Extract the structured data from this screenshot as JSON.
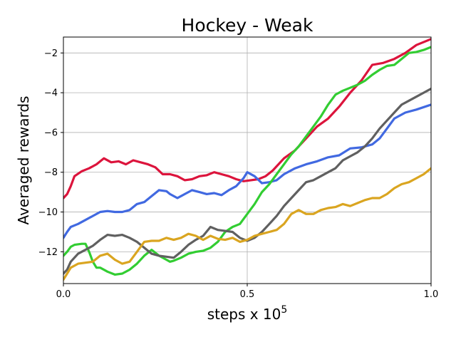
{
  "chart_data": {
    "type": "line",
    "title": "Hockey - Weak",
    "xlabel": "steps x 10",
    "xlabel_superscript": "5",
    "ylabel": "Averaged rewards",
    "xlim": [
      0.0,
      1.0
    ],
    "ylim": [
      -13.6,
      -1.2
    ],
    "x_ticks": [
      0.0,
      0.5,
      1.0
    ],
    "x_tick_labels": [
      "0.0",
      "0.5",
      "1.0"
    ],
    "y_ticks": [
      -12,
      -10,
      -8,
      -6,
      -4,
      -2
    ],
    "y_tick_labels": [
      "−12",
      "−10",
      "−8",
      "−6",
      "−4",
      "−2"
    ],
    "grid": true,
    "legend": "none",
    "series": [
      {
        "color": "#dc143c",
        "x": [
          0.0,
          0.01,
          0.02,
          0.03,
          0.05,
          0.07,
          0.09,
          0.11,
          0.13,
          0.15,
          0.17,
          0.19,
          0.21,
          0.23,
          0.25,
          0.27,
          0.29,
          0.31,
          0.33,
          0.35,
          0.37,
          0.39,
          0.41,
          0.43,
          0.45,
          0.47,
          0.49,
          0.51,
          0.53,
          0.55,
          0.57,
          0.6,
          0.63,
          0.66,
          0.69,
          0.72,
          0.75,
          0.78,
          0.81,
          0.84,
          0.87,
          0.9,
          0.93,
          0.96,
          1.0
        ],
        "y": [
          -9.3,
          -9.1,
          -8.7,
          -8.2,
          -7.95,
          -7.8,
          -7.6,
          -7.3,
          -7.5,
          -7.45,
          -7.6,
          -7.4,
          -7.5,
          -7.6,
          -7.75,
          -8.1,
          -8.1,
          -8.2,
          -8.4,
          -8.35,
          -8.2,
          -8.15,
          -8.0,
          -8.1,
          -8.2,
          -8.35,
          -8.45,
          -8.4,
          -8.35,
          -8.2,
          -7.9,
          -7.3,
          -6.9,
          -6.3,
          -5.7,
          -5.3,
          -4.7,
          -4.0,
          -3.4,
          -2.6,
          -2.5,
          -2.3,
          -2.0,
          -1.6,
          -1.3
        ]
      },
      {
        "color": "#4169e1",
        "x": [
          0.0,
          0.01,
          0.02,
          0.04,
          0.06,
          0.08,
          0.1,
          0.12,
          0.14,
          0.16,
          0.18,
          0.2,
          0.22,
          0.24,
          0.26,
          0.28,
          0.29,
          0.31,
          0.33,
          0.35,
          0.37,
          0.39,
          0.41,
          0.43,
          0.45,
          0.47,
          0.49,
          0.5,
          0.52,
          0.54,
          0.56,
          0.58,
          0.6,
          0.63,
          0.66,
          0.69,
          0.72,
          0.75,
          0.78,
          0.81,
          0.84,
          0.86,
          0.88,
          0.9,
          0.93,
          0.96,
          1.0
        ],
        "y": [
          -11.3,
          -11.0,
          -10.75,
          -10.6,
          -10.4,
          -10.2,
          -10.0,
          -9.95,
          -10.0,
          -10.0,
          -9.9,
          -9.6,
          -9.5,
          -9.2,
          -8.9,
          -8.95,
          -9.1,
          -9.3,
          -9.1,
          -8.9,
          -9.0,
          -9.1,
          -9.05,
          -9.15,
          -8.9,
          -8.7,
          -8.3,
          -8.0,
          -8.2,
          -8.55,
          -8.5,
          -8.4,
          -8.1,
          -7.8,
          -7.6,
          -7.45,
          -7.25,
          -7.15,
          -6.8,
          -6.75,
          -6.6,
          -6.3,
          -5.8,
          -5.3,
          -5.0,
          -4.85,
          -4.6
        ]
      },
      {
        "color": "#32cd32",
        "x": [
          0.0,
          0.01,
          0.02,
          0.03,
          0.05,
          0.06,
          0.07,
          0.08,
          0.09,
          0.1,
          0.12,
          0.14,
          0.16,
          0.18,
          0.2,
          0.22,
          0.24,
          0.26,
          0.28,
          0.29,
          0.3,
          0.32,
          0.34,
          0.36,
          0.38,
          0.4,
          0.42,
          0.44,
          0.46,
          0.48,
          0.5,
          0.52,
          0.54,
          0.56,
          0.58,
          0.6,
          0.62,
          0.64,
          0.66,
          0.68,
          0.7,
          0.72,
          0.74,
          0.76,
          0.78,
          0.8,
          0.82,
          0.84,
          0.86,
          0.88,
          0.9,
          0.92,
          0.94,
          0.96,
          0.98,
          1.0
        ],
        "y": [
          -12.2,
          -12.0,
          -11.75,
          -11.65,
          -11.6,
          -11.6,
          -12.0,
          -12.5,
          -12.8,
          -12.8,
          -13.0,
          -13.15,
          -13.1,
          -12.9,
          -12.6,
          -12.2,
          -11.9,
          -12.2,
          -12.4,
          -12.5,
          -12.45,
          -12.3,
          -12.1,
          -12.0,
          -11.95,
          -11.8,
          -11.5,
          -11.0,
          -10.75,
          -10.6,
          -10.1,
          -9.6,
          -9.0,
          -8.6,
          -8.1,
          -7.6,
          -7.1,
          -6.7,
          -6.2,
          -5.7,
          -5.2,
          -4.6,
          -4.1,
          -3.9,
          -3.75,
          -3.6,
          -3.4,
          -3.1,
          -2.85,
          -2.65,
          -2.6,
          -2.3,
          -2.0,
          -1.95,
          -1.85,
          -1.7
        ]
      },
      {
        "color": "#606060",
        "x": [
          0.0,
          0.01,
          0.02,
          0.04,
          0.06,
          0.08,
          0.1,
          0.12,
          0.14,
          0.16,
          0.18,
          0.2,
          0.22,
          0.24,
          0.26,
          0.28,
          0.3,
          0.32,
          0.34,
          0.36,
          0.38,
          0.4,
          0.42,
          0.44,
          0.46,
          0.48,
          0.5,
          0.52,
          0.54,
          0.56,
          0.58,
          0.6,
          0.62,
          0.64,
          0.66,
          0.68,
          0.7,
          0.72,
          0.74,
          0.76,
          0.78,
          0.8,
          0.82,
          0.84,
          0.86,
          0.88,
          0.9,
          0.92,
          0.94,
          0.96,
          0.98,
          1.0
        ],
        "y": [
          -13.1,
          -12.9,
          -12.5,
          -12.1,
          -11.9,
          -11.7,
          -11.4,
          -11.15,
          -11.2,
          -11.15,
          -11.3,
          -11.5,
          -11.8,
          -12.1,
          -12.2,
          -12.25,
          -12.3,
          -12.0,
          -11.65,
          -11.4,
          -11.2,
          -10.75,
          -10.9,
          -10.95,
          -11.0,
          -11.3,
          -11.45,
          -11.3,
          -11.0,
          -10.6,
          -10.2,
          -9.7,
          -9.3,
          -8.9,
          -8.5,
          -8.4,
          -8.2,
          -8.0,
          -7.8,
          -7.4,
          -7.2,
          -7.0,
          -6.7,
          -6.3,
          -5.8,
          -5.4,
          -5.0,
          -4.6,
          -4.4,
          -4.2,
          -4.0,
          -3.8
        ]
      },
      {
        "color": "#daa520",
        "x": [
          0.0,
          0.01,
          0.02,
          0.04,
          0.06,
          0.08,
          0.1,
          0.12,
          0.14,
          0.16,
          0.18,
          0.2,
          0.22,
          0.24,
          0.26,
          0.28,
          0.3,
          0.32,
          0.34,
          0.36,
          0.38,
          0.4,
          0.42,
          0.44,
          0.46,
          0.48,
          0.5,
          0.52,
          0.54,
          0.56,
          0.58,
          0.6,
          0.62,
          0.64,
          0.66,
          0.68,
          0.7,
          0.72,
          0.74,
          0.76,
          0.78,
          0.8,
          0.82,
          0.84,
          0.86,
          0.88,
          0.9,
          0.92,
          0.94,
          0.96,
          0.98,
          1.0
        ],
        "y": [
          -13.4,
          -13.1,
          -12.8,
          -12.6,
          -12.55,
          -12.5,
          -12.2,
          -12.1,
          -12.4,
          -12.6,
          -12.5,
          -12.0,
          -11.5,
          -11.45,
          -11.45,
          -11.3,
          -11.4,
          -11.3,
          -11.1,
          -11.2,
          -11.4,
          -11.2,
          -11.35,
          -11.4,
          -11.3,
          -11.5,
          -11.4,
          -11.2,
          -11.1,
          -11.0,
          -10.9,
          -10.6,
          -10.1,
          -9.9,
          -10.1,
          -10.1,
          -9.9,
          -9.8,
          -9.75,
          -9.6,
          -9.7,
          -9.55,
          -9.4,
          -9.3,
          -9.3,
          -9.1,
          -8.8,
          -8.6,
          -8.5,
          -8.3,
          -8.1,
          -7.8
        ]
      }
    ]
  }
}
